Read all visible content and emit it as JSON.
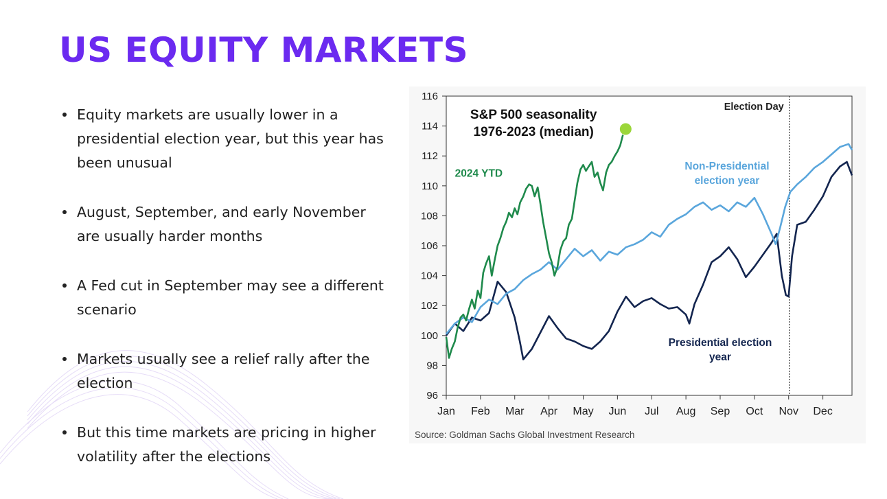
{
  "title": "US EQUITY MARKETS",
  "bullets": [
    "Equity markets are usually lower in a presidential election year, but this year has been unusual",
    "August, September, and early November are usually harder months",
    "A Fed cut in September may see a different scenario",
    "Markets usually see a relief rally after the election",
    "But this time markets are pricing in higher volatility after the elections"
  ],
  "chart_data": {
    "type": "line",
    "title_lines": [
      "S&P 500 seasonality",
      "1976-2023 (median)"
    ],
    "source": "Source: Goldman Sachs Global Investment Research",
    "x_months": [
      "Jan",
      "Feb",
      "Mar",
      "Apr",
      "May",
      "Jun",
      "Jul",
      "Aug",
      "Sep",
      "Oct",
      "Nov",
      "Dec"
    ],
    "xlim": [
      0,
      11.85
    ],
    "ylim": [
      96,
      116
    ],
    "y_ticks": [
      96,
      98,
      100,
      102,
      104,
      106,
      108,
      110,
      112,
      114,
      116
    ],
    "election_day": {
      "x": 10.02,
      "label": "Election Day"
    },
    "series": [
      {
        "name": "2024 YTD",
        "color": "#1f8a4c",
        "label_lines": [
          "2024 YTD"
        ],
        "label_anchor": {
          "x": 0.95,
          "y": 110.6
        },
        "points": [
          [
            0.0,
            99.9
          ],
          [
            0.08,
            98.5
          ],
          [
            0.16,
            99.1
          ],
          [
            0.25,
            99.6
          ],
          [
            0.33,
            100.5
          ],
          [
            0.42,
            101.2
          ],
          [
            0.5,
            101.4
          ],
          [
            0.58,
            101.0
          ],
          [
            0.67,
            101.8
          ],
          [
            0.75,
            102.4
          ],
          [
            0.83,
            101.8
          ],
          [
            0.92,
            103.0
          ],
          [
            1.0,
            102.5
          ],
          [
            1.08,
            104.2
          ],
          [
            1.16,
            104.8
          ],
          [
            1.25,
            105.3
          ],
          [
            1.33,
            104.0
          ],
          [
            1.42,
            105.1
          ],
          [
            1.5,
            106.0
          ],
          [
            1.58,
            106.5
          ],
          [
            1.67,
            107.2
          ],
          [
            1.75,
            107.6
          ],
          [
            1.83,
            108.2
          ],
          [
            1.92,
            107.9
          ],
          [
            2.0,
            108.5
          ],
          [
            2.08,
            108.1
          ],
          [
            2.16,
            108.9
          ],
          [
            2.25,
            109.3
          ],
          [
            2.33,
            109.8
          ],
          [
            2.42,
            110.1
          ],
          [
            2.5,
            110.0
          ],
          [
            2.58,
            109.3
          ],
          [
            2.67,
            109.9
          ],
          [
            2.75,
            108.8
          ],
          [
            2.83,
            107.6
          ],
          [
            2.92,
            106.5
          ],
          [
            3.0,
            105.5
          ],
          [
            3.08,
            104.9
          ],
          [
            3.16,
            104.0
          ],
          [
            3.25,
            104.6
          ],
          [
            3.33,
            105.7
          ],
          [
            3.42,
            106.3
          ],
          [
            3.5,
            106.5
          ],
          [
            3.58,
            107.4
          ],
          [
            3.67,
            107.8
          ],
          [
            3.75,
            109.0
          ],
          [
            3.83,
            110.2
          ],
          [
            3.92,
            111.1
          ],
          [
            4.0,
            111.4
          ],
          [
            4.08,
            111.0
          ],
          [
            4.16,
            111.3
          ],
          [
            4.25,
            111.6
          ],
          [
            4.33,
            110.6
          ],
          [
            4.42,
            110.9
          ],
          [
            4.5,
            110.2
          ],
          [
            4.58,
            109.7
          ],
          [
            4.67,
            110.9
          ],
          [
            4.75,
            111.4
          ],
          [
            4.83,
            111.6
          ],
          [
            4.92,
            112.0
          ],
          [
            5.0,
            112.3
          ],
          [
            5.08,
            112.7
          ],
          [
            5.16,
            113.4
          ],
          [
            5.24,
            113.8
          ]
        ],
        "end_marker": true
      },
      {
        "name": "Non-Presidential election year",
        "color": "#5aa6dc",
        "label_lines": [
          "Non-Presidential",
          "election year"
        ],
        "label_anchor": {
          "x": 8.2,
          "y": 111.1
        },
        "points": [
          [
            0.0,
            100.1
          ],
          [
            0.25,
            100.8
          ],
          [
            0.5,
            101.2
          ],
          [
            0.75,
            100.9
          ],
          [
            1.0,
            101.9
          ],
          [
            1.25,
            102.4
          ],
          [
            1.5,
            102.1
          ],
          [
            1.75,
            102.8
          ],
          [
            2.0,
            103.1
          ],
          [
            2.25,
            103.7
          ],
          [
            2.5,
            104.1
          ],
          [
            2.75,
            104.4
          ],
          [
            3.0,
            104.9
          ],
          [
            3.25,
            104.4
          ],
          [
            3.5,
            105.1
          ],
          [
            3.75,
            105.8
          ],
          [
            4.0,
            105.3
          ],
          [
            4.25,
            105.7
          ],
          [
            4.5,
            105.0
          ],
          [
            4.75,
            105.6
          ],
          [
            5.0,
            105.4
          ],
          [
            5.25,
            105.9
          ],
          [
            5.5,
            106.1
          ],
          [
            5.75,
            106.4
          ],
          [
            6.0,
            106.9
          ],
          [
            6.25,
            106.6
          ],
          [
            6.5,
            107.4
          ],
          [
            6.75,
            107.8
          ],
          [
            7.0,
            108.1
          ],
          [
            7.25,
            108.6
          ],
          [
            7.5,
            108.9
          ],
          [
            7.75,
            108.4
          ],
          [
            8.0,
            108.7
          ],
          [
            8.25,
            108.3
          ],
          [
            8.5,
            108.9
          ],
          [
            8.75,
            108.6
          ],
          [
            9.0,
            109.2
          ],
          [
            9.25,
            108.1
          ],
          [
            9.5,
            106.8
          ],
          [
            9.62,
            106.1
          ],
          [
            9.75,
            107.2
          ],
          [
            9.9,
            108.6
          ],
          [
            10.05,
            109.6
          ],
          [
            10.25,
            110.1
          ],
          [
            10.5,
            110.6
          ],
          [
            10.75,
            111.2
          ],
          [
            11.0,
            111.6
          ],
          [
            11.25,
            112.1
          ],
          [
            11.5,
            112.6
          ],
          [
            11.75,
            112.8
          ],
          [
            11.85,
            112.4
          ]
        ]
      },
      {
        "name": "Presidential election year",
        "color": "#13254f",
        "label_lines": [
          "Presidential election",
          "year"
        ],
        "label_anchor": {
          "x": 8.0,
          "y": 99.3
        },
        "points": [
          [
            0.0,
            100.0
          ],
          [
            0.25,
            100.8
          ],
          [
            0.5,
            100.3
          ],
          [
            0.75,
            101.2
          ],
          [
            1.0,
            101.0
          ],
          [
            1.25,
            101.5
          ],
          [
            1.5,
            103.6
          ],
          [
            1.75,
            102.9
          ],
          [
            2.0,
            101.2
          ],
          [
            2.15,
            99.6
          ],
          [
            2.25,
            98.4
          ],
          [
            2.5,
            99.1
          ],
          [
            2.75,
            100.2
          ],
          [
            3.0,
            101.3
          ],
          [
            3.25,
            100.5
          ],
          [
            3.5,
            99.8
          ],
          [
            3.75,
            99.6
          ],
          [
            4.0,
            99.3
          ],
          [
            4.25,
            99.1
          ],
          [
            4.5,
            99.6
          ],
          [
            4.75,
            100.3
          ],
          [
            5.0,
            101.6
          ],
          [
            5.25,
            102.6
          ],
          [
            5.5,
            101.9
          ],
          [
            5.75,
            102.3
          ],
          [
            6.0,
            102.5
          ],
          [
            6.25,
            102.1
          ],
          [
            6.5,
            101.8
          ],
          [
            6.75,
            101.9
          ],
          [
            7.0,
            101.4
          ],
          [
            7.1,
            100.8
          ],
          [
            7.25,
            102.1
          ],
          [
            7.5,
            103.4
          ],
          [
            7.75,
            104.9
          ],
          [
            8.0,
            105.3
          ],
          [
            8.25,
            105.9
          ],
          [
            8.5,
            105.1
          ],
          [
            8.75,
            103.9
          ],
          [
            9.0,
            104.6
          ],
          [
            9.25,
            105.4
          ],
          [
            9.5,
            106.2
          ],
          [
            9.65,
            106.8
          ],
          [
            9.8,
            104.0
          ],
          [
            9.92,
            102.7
          ],
          [
            10.0,
            102.6
          ],
          [
            10.1,
            105.3
          ],
          [
            10.25,
            107.4
          ],
          [
            10.5,
            107.6
          ],
          [
            10.75,
            108.4
          ],
          [
            11.0,
            109.3
          ],
          [
            11.25,
            110.6
          ],
          [
            11.5,
            111.3
          ],
          [
            11.7,
            111.6
          ],
          [
            11.85,
            110.7
          ]
        ]
      }
    ]
  }
}
